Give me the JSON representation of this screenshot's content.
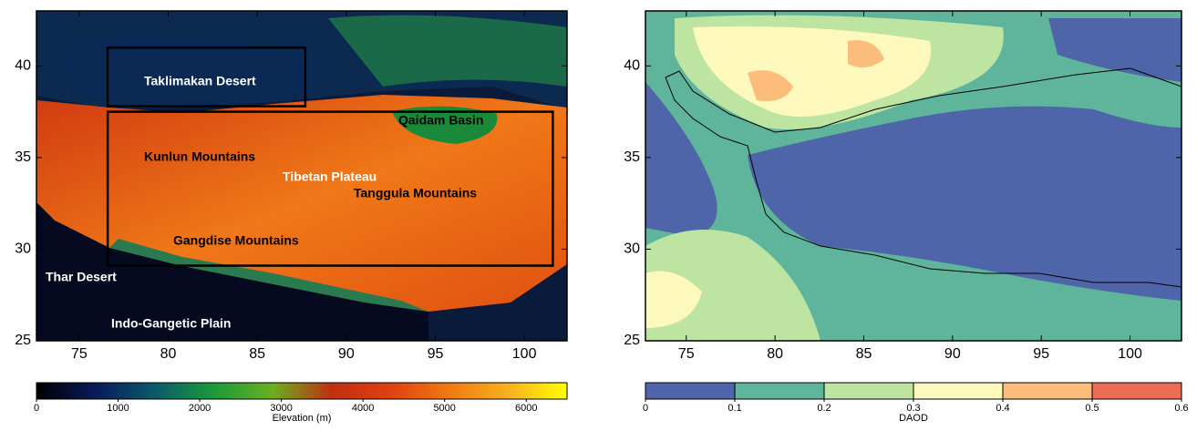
{
  "panels": [
    {
      "xlim": [
        72.6,
        102.4
      ],
      "ylim": [
        25,
        43
      ],
      "xticks": [
        75,
        80,
        85,
        90,
        95,
        100
      ],
      "yticks": [
        25,
        30,
        35,
        40
      ],
      "labels": [
        "Taklimakan Desert",
        "Qaidam Basin",
        "Kunlun Mountains",
        "Tibetan Plateau",
        "Tanggula Mountains",
        "Gangdise Mountains",
        "Thar Desert",
        "Indo-Gangetic Plain"
      ],
      "boxes": [
        {
          "lon": [
            76.6,
            87.7
          ],
          "lat": [
            37.8,
            41.0
          ]
        },
        {
          "lon": [
            76.6,
            101.6
          ],
          "lat": [
            29.1,
            37.5
          ]
        }
      ],
      "colorbar": {
        "title": "Elevation (m)",
        "range": [
          0,
          6500
        ],
        "ticks": [
          0,
          1000,
          2000,
          3000,
          4000,
          5000,
          6000
        ],
        "colors": [
          "#000000",
          "#0a1a5a",
          "#0a5a6a",
          "#1a9a3a",
          "#6ab020",
          "#c03010",
          "#e04010",
          "#f07a10",
          "#f8b020",
          "#ffff00"
        ]
      }
    },
    {
      "xlim": [
        72.7,
        102.9
      ],
      "ylim": [
        25,
        43
      ],
      "xticks": [
        75,
        80,
        85,
        90,
        95,
        100
      ],
      "yticks": [
        25,
        30,
        35,
        40
      ],
      "colorbar": {
        "title": "DAOD",
        "range": [
          0,
          0.6
        ],
        "ticks": [
          0,
          0.1,
          0.2,
          0.3,
          0.4,
          0.5,
          0.6
        ],
        "colors": [
          "#4e65a9",
          "#5fb59b",
          "#bde4a1",
          "#fdf8bb",
          "#fcbd7c",
          "#ec6d55"
        ]
      }
    }
  ]
}
